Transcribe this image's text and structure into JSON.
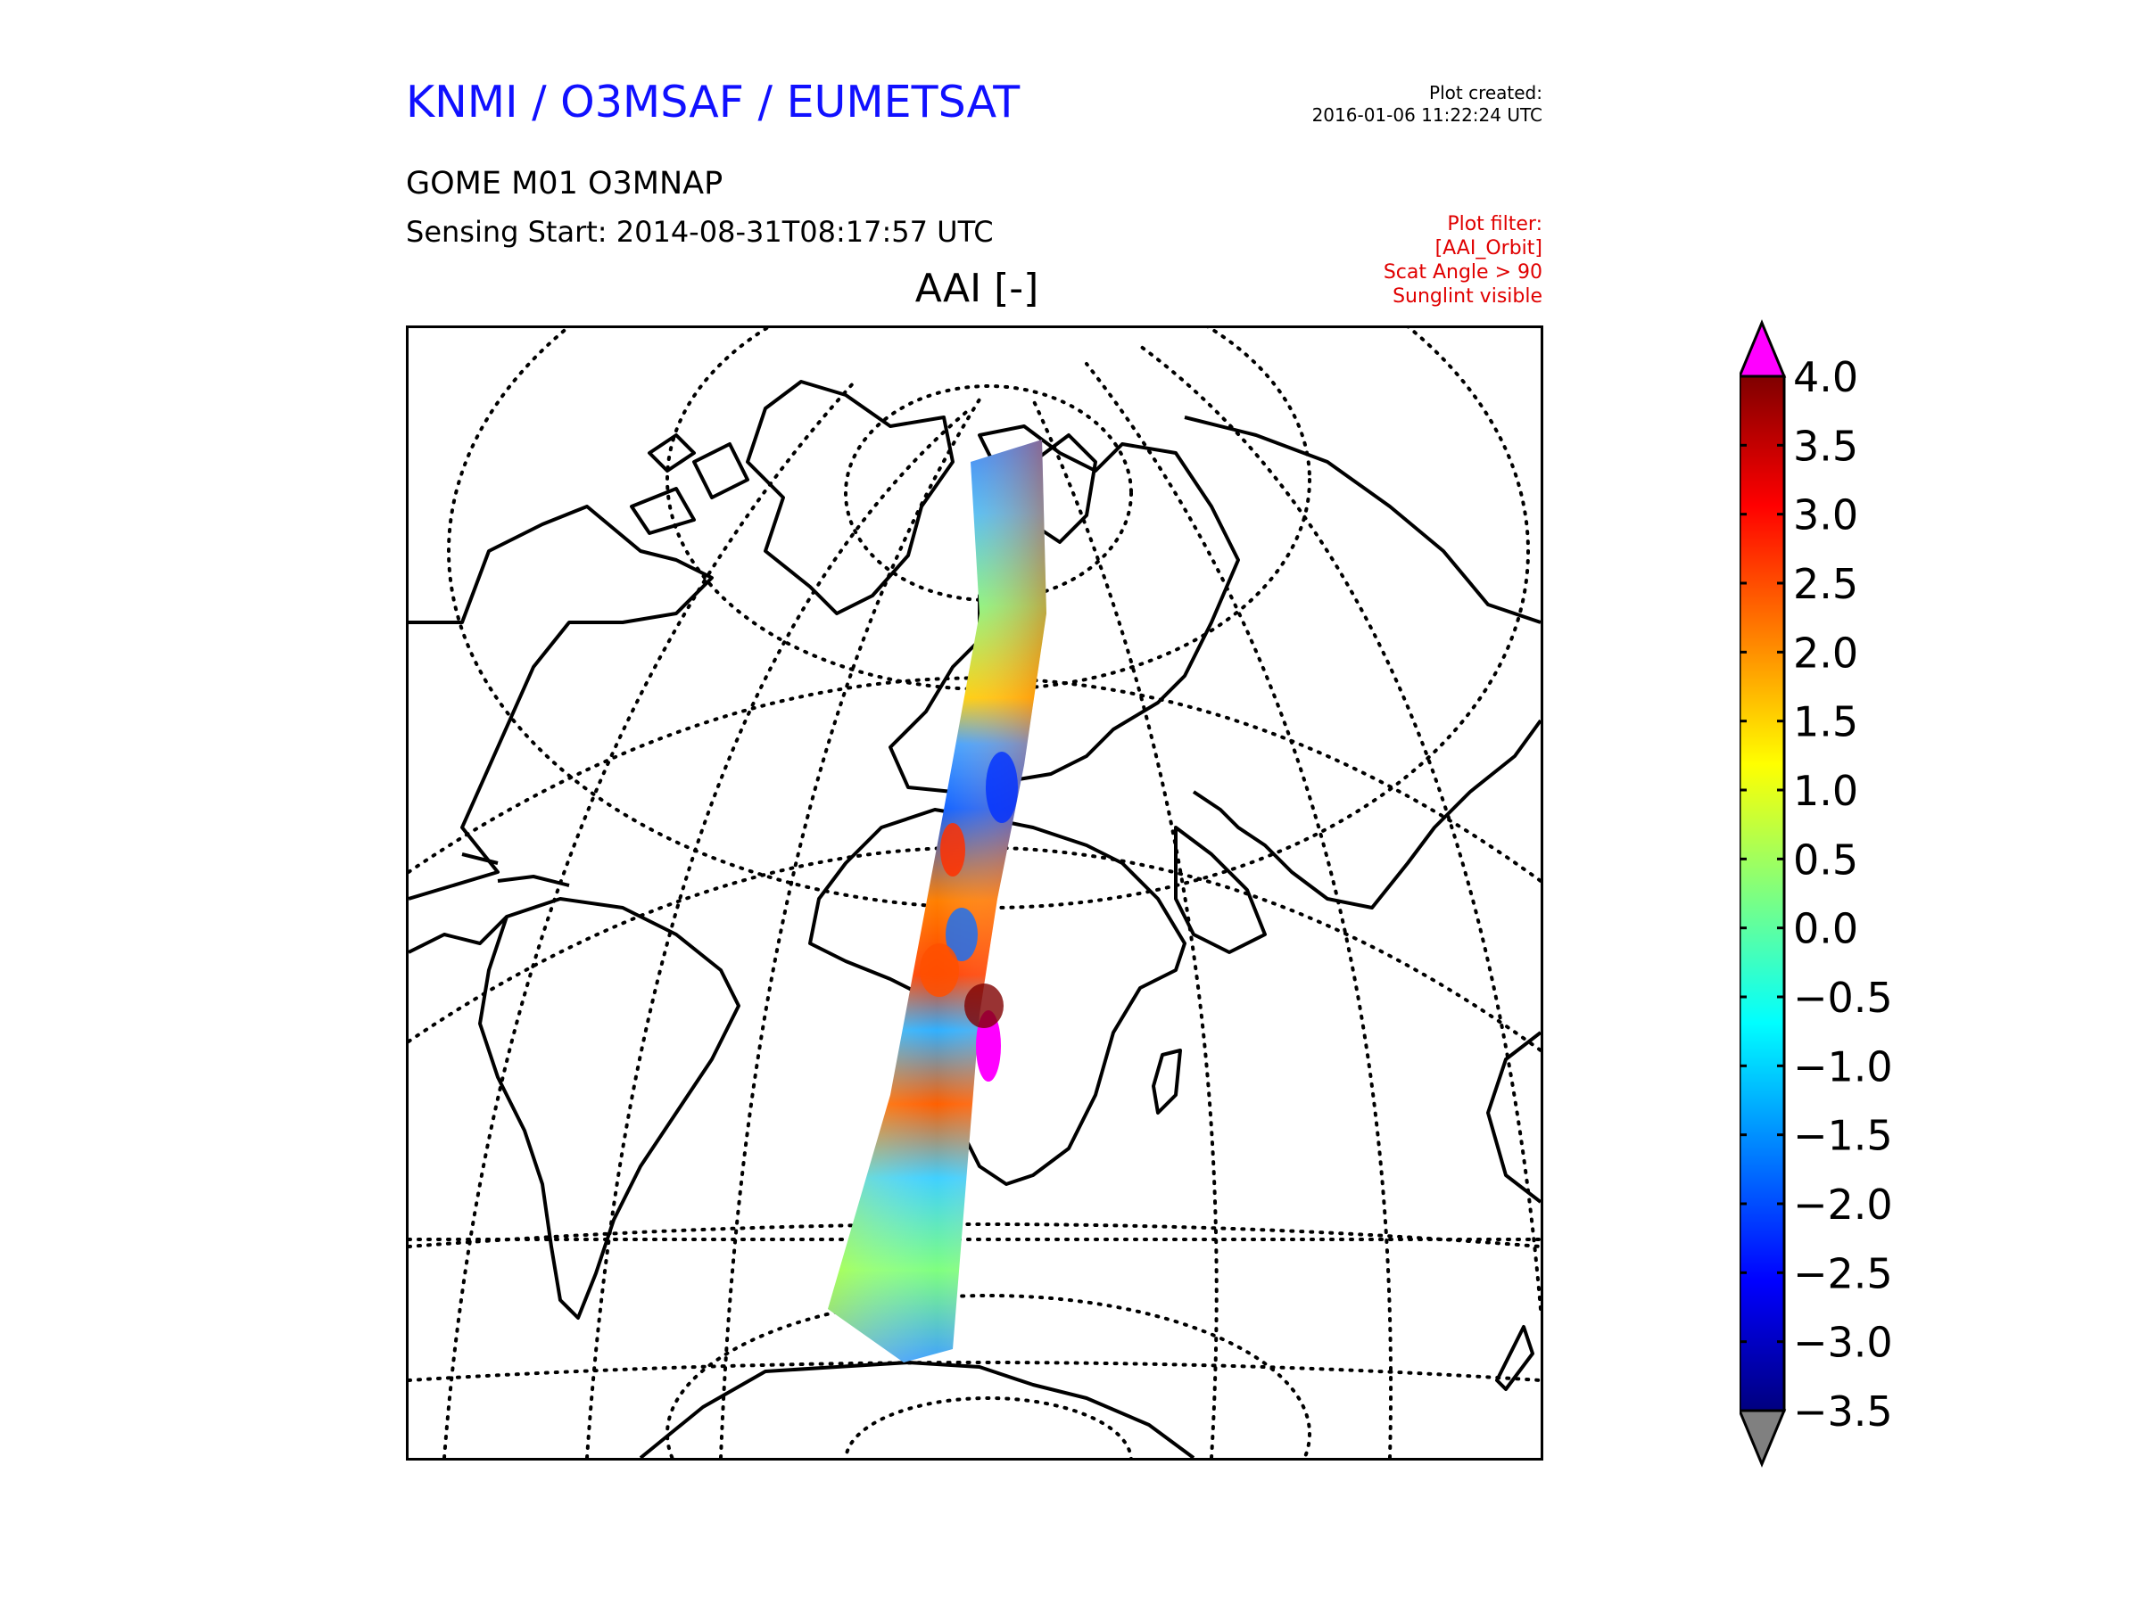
{
  "header": {
    "organisation": "KNMI / O3MSAF / EUMETSAT",
    "plot_created_label": "Plot created:",
    "plot_created_time": "2016-01-06 11:22:24 UTC",
    "product": "GOME M01 O3MNAP",
    "sensing_start": "Sensing Start: 2014-08-31T08:17:57 UTC"
  },
  "plot_filter": {
    "heading": "Plot filter:",
    "lines": [
      "[AAI_Orbit]",
      "Scat Angle > 90",
      "Sunglint visible"
    ]
  },
  "map": {
    "title": "AAI [-]",
    "projection": "orthographic",
    "graticule_style": "dotted",
    "coastline_color": "#000000",
    "swath_colormap": "jet",
    "regions_shown": [
      "Arctic",
      "Europe",
      "Africa",
      "Atlantic Ocean",
      "South America",
      "Antarctica"
    ]
  },
  "colorbar": {
    "min": -3.5,
    "max": 4.0,
    "over_color": "#ff00ff",
    "under_color": "#808080",
    "colors": [
      "#00007f",
      "#0000ff",
      "#007fff",
      "#00ffff",
      "#7fff7f",
      "#ffff00",
      "#ff7f00",
      "#ff0000",
      "#7f0000"
    ],
    "tick_labels": [
      "4.0",
      "3.5",
      "3.0",
      "2.5",
      "2.0",
      "1.5",
      "1.0",
      "0.5",
      "0.0",
      "−0.5",
      "−1.0",
      "−1.5",
      "−2.0",
      "−2.5",
      "−3.0",
      "−3.5"
    ]
  }
}
